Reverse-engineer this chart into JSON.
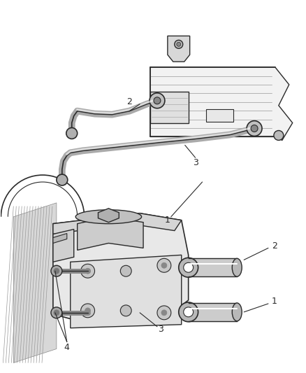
{
  "bg_color": "#ffffff",
  "line_color": "#2a2a2a",
  "fig_width": 4.38,
  "fig_height": 5.33,
  "dpi": 100
}
